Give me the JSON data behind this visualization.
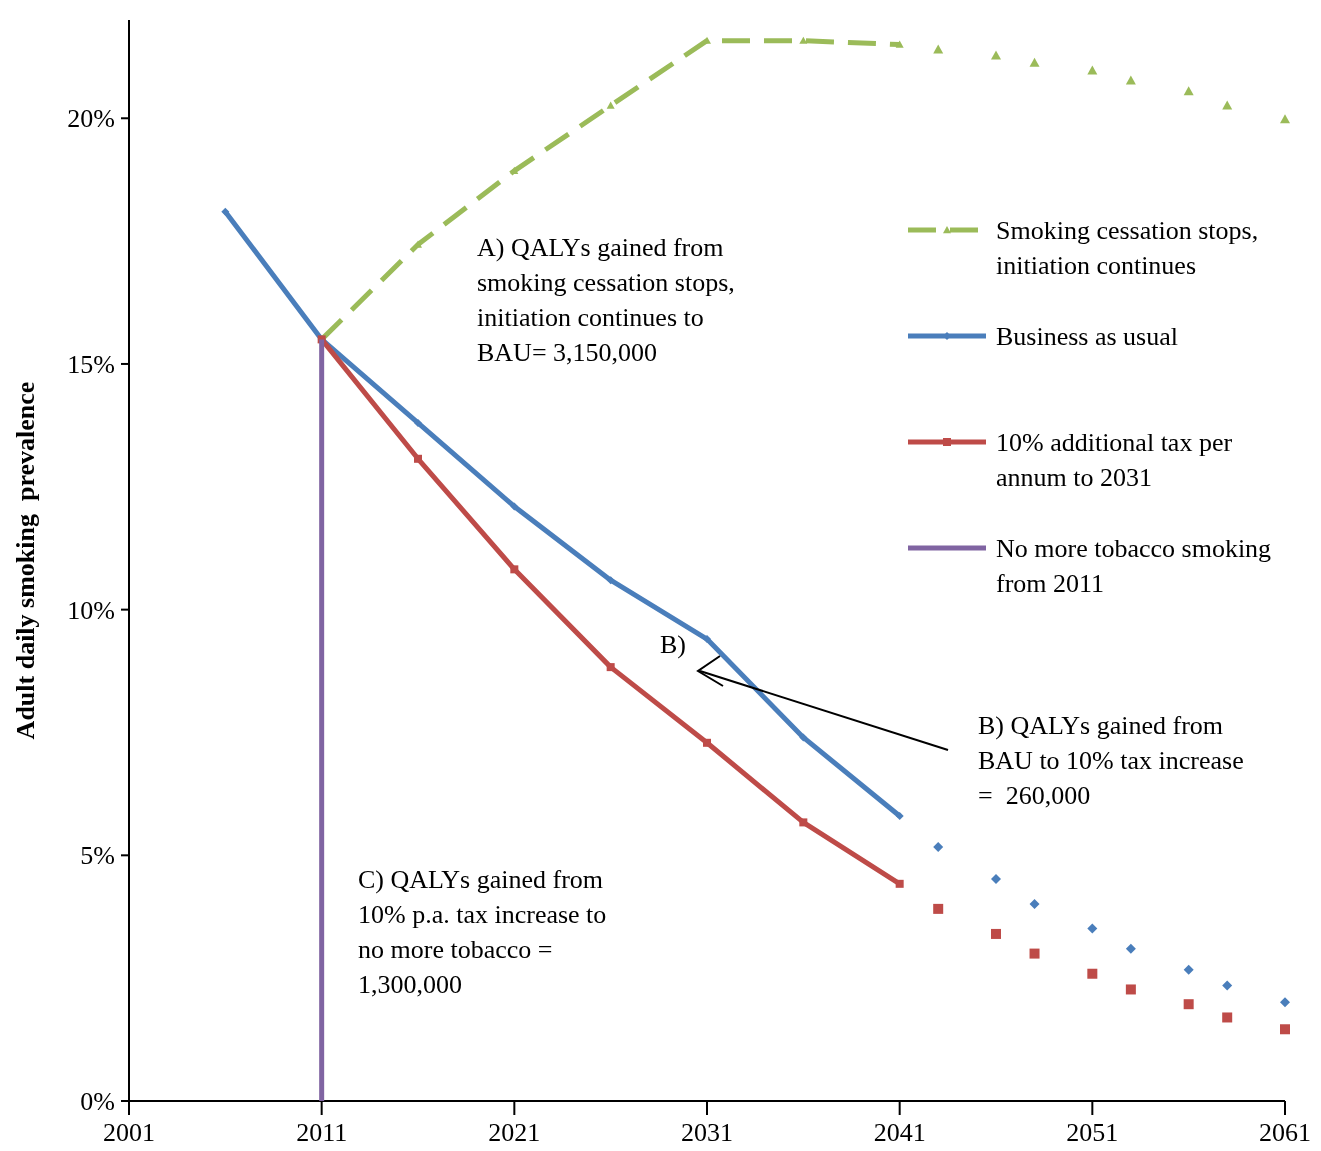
{
  "chart_data": {
    "type": "line",
    "ylabel": "Adult daily smoking  prevalence",
    "xlim": [
      2001,
      2061
    ],
    "xticks": [
      2001,
      2011,
      2021,
      2031,
      2041,
      2051,
      2061
    ],
    "ylim": [
      0,
      22
    ],
    "yticks": [
      {
        "value": 0,
        "label": "0%"
      },
      {
        "value": 5,
        "label": "5%"
      },
      {
        "value": 10,
        "label": "10%"
      },
      {
        "value": 15,
        "label": "15%"
      },
      {
        "value": 20,
        "label": "20%"
      }
    ],
    "grid": false,
    "legend": "right",
    "series": [
      {
        "name": "Smoking cessation stops, initiation continues",
        "color": "#9bbb59",
        "line_style": "dashed",
        "marker": "triangle",
        "x": [
          2011,
          2016,
          2021,
          2026,
          2031,
          2036,
          2041
        ],
        "values": [
          15.5,
          17.43,
          18.93,
          20.26,
          21.58,
          21.58,
          21.5
        ]
      },
      {
        "type": "scatter",
        "color": "#9bbb59",
        "marker": "triangle",
        "x": [
          2043,
          2046,
          2048,
          2051,
          2053,
          2056,
          2058,
          2061
        ],
        "values": [
          21.4,
          21.28,
          21.13,
          20.97,
          20.77,
          20.55,
          20.26,
          19.98
        ]
      },
      {
        "name": "Business as usual",
        "color": "#4a7ebb",
        "line_style": "solid",
        "marker": "diamond",
        "x": [
          2006,
          2011,
          2016,
          2021,
          2026,
          2031,
          2036,
          2041
        ],
        "values": [
          18.1,
          15.5,
          13.8,
          12.1,
          10.6,
          9.4,
          7.4,
          5.8
        ]
      },
      {
        "type": "scatter",
        "color": "#4a7ebb",
        "marker": "diamond",
        "x": [
          2043,
          2046,
          2048,
          2051,
          2053,
          2056,
          2058,
          2061
        ],
        "values": [
          5.17,
          4.52,
          4.01,
          3.51,
          3.1,
          2.67,
          2.35,
          2.01
        ]
      },
      {
        "name": "10% additional tax per annum to 2031",
        "color": "#be4b48",
        "line_style": "solid",
        "marker": "square",
        "x": [
          2011,
          2016,
          2021,
          2026,
          2031,
          2036,
          2041
        ],
        "values": [
          15.5,
          13.07,
          10.82,
          8.83,
          7.29,
          5.67,
          4.42
        ]
      },
      {
        "type": "scatter",
        "color": "#be4b48",
        "marker": "square",
        "x": [
          2043,
          2046,
          2048,
          2051,
          2053,
          2056,
          2058,
          2061
        ],
        "values": [
          3.91,
          3.4,
          3.0,
          2.59,
          2.27,
          1.97,
          1.7,
          1.46
        ]
      },
      {
        "name": "No more tobacco smoking from 2011",
        "color": "#8064a2",
        "line_style": "solid",
        "marker": "none",
        "x": [
          2011,
          2011
        ],
        "values": [
          0,
          15.5
        ]
      }
    ],
    "annotations": [
      "A) QALYs gained from smoking cessation stops, initiation continues to BAU= 3,150,000",
      "B)",
      "B) QALYs gained from BAU to 10% tax increase =  260,000",
      "C) QALYs gained from 10% p.a. tax increase to no more tobacco = 1,300,000"
    ]
  }
}
